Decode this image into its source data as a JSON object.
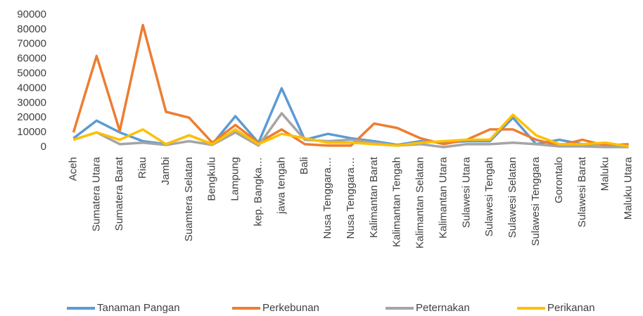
{
  "chart_data": {
    "type": "line",
    "categories": [
      "Aceh",
      "Sumatera Utara",
      "Sumatera Barat",
      "Riau",
      "Jambi",
      "Suamtera Selatan",
      "Bengkulu",
      "Lampung",
      "kep. Bangka…",
      "jawa tengah",
      "Bali",
      "Nusa Tenggara…",
      "Nusa Tenggara…",
      "Kalimantan Barat",
      "Kalimantan Tengah",
      "Kalimantan Selatan",
      "Kalimantan Utara",
      "Sulawesi Utara",
      "Sulawesi Tengah",
      "Sulawesi Selatan",
      "Sulawesi Tenggara",
      "Gorontalo",
      "Sulawesi Barat",
      "Maluku",
      "Maluku Utara"
    ],
    "series": [
      {
        "name": "Tanaman Pangan",
        "color": "#5b9bd5",
        "values": [
          6000,
          18000,
          10000,
          4000,
          2000,
          8000,
          2000,
          21000,
          3000,
          40000,
          5000,
          9000,
          6000,
          4000,
          1500,
          4000,
          3000,
          4000,
          4000,
          20000,
          2000,
          5000,
          2000,
          2000,
          1000
        ]
      },
      {
        "name": "Perkebunan",
        "color": "#ed7d31",
        "values": [
          10000,
          62000,
          11000,
          83000,
          24000,
          20000,
          3000,
          15000,
          3000,
          12000,
          2000,
          1000,
          1000,
          16000,
          13000,
          6000,
          2000,
          5000,
          12000,
          12000,
          5000,
          1000,
          5000,
          1000,
          2000
        ]
      },
      {
        "name": "Peternakan",
        "color": "#a5a5a5",
        "values": [
          5000,
          10000,
          2000,
          3000,
          1500,
          4000,
          1500,
          10000,
          1000,
          23000,
          5000,
          4000,
          5000,
          3000,
          1000,
          2000,
          0,
          2000,
          2000,
          3000,
          2000,
          500,
          500,
          0,
          0
        ]
      },
      {
        "name": "Perikanan",
        "color": "#ffc000",
        "values": [
          5000,
          10000,
          5000,
          12000,
          2000,
          8000,
          2000,
          12000,
          2000,
          9000,
          6000,
          3000,
          3000,
          2000,
          1000,
          3000,
          4000,
          5000,
          5000,
          22000,
          8000,
          2000,
          2000,
          3000,
          500
        ]
      }
    ],
    "ylim": [
      0,
      90000
    ],
    "yticks": [
      0,
      10000,
      20000,
      30000,
      40000,
      50000,
      60000,
      70000,
      80000,
      90000
    ],
    "grid": false,
    "legend": "bottom"
  }
}
